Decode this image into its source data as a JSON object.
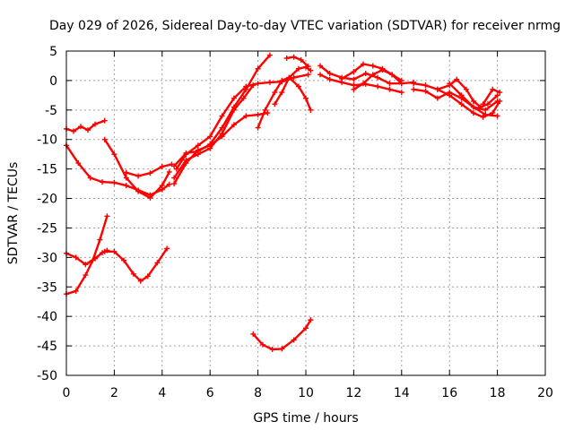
{
  "chart_data": {
    "type": "scatter",
    "title": "Day 029 of 2026, Sidereal Day-to-day VTEC variation (SDTVAR) for receiver nrmg",
    "xlabel": "GPS time / hours",
    "ylabel": "SDTVAR / TECUs",
    "xlim": [
      0,
      20
    ],
    "ylim": [
      -50,
      5
    ],
    "xticks": [
      0,
      2,
      4,
      6,
      8,
      10,
      12,
      14,
      16,
      18,
      20
    ],
    "yticks": [
      -50,
      -45,
      -40,
      -35,
      -30,
      -25,
      -20,
      -15,
      -10,
      -5,
      0,
      5
    ],
    "grid": true,
    "legend": "none",
    "color": "#ff0000",
    "series": [
      {
        "x": [
          0.0,
          0.3,
          0.6,
          0.9,
          1.2,
          1.6
        ],
        "y": [
          -8.2,
          -8.6,
          -7.8,
          -8.4,
          -7.4,
          -6.8
        ]
      },
      {
        "x": [
          0.0,
          0.5,
          1.0,
          1.5,
          2.0,
          2.5,
          3.0,
          3.5,
          4.0,
          4.3
        ],
        "y": [
          -11.0,
          -14.0,
          -16.5,
          -17.2,
          -17.3,
          -17.8,
          -18.6,
          -19.4,
          -18.5,
          -17.6
        ]
      },
      {
        "x": [
          0.0,
          0.4,
          0.8,
          1.2,
          1.5,
          1.7
        ],
        "y": [
          -29.3,
          -30.0,
          -31.2,
          -30.2,
          -29.2,
          -28.8
        ]
      },
      {
        "x": [
          0.0,
          0.4,
          0.8,
          1.1,
          1.4,
          1.7
        ],
        "y": [
          -36.2,
          -35.7,
          -33.0,
          -30.5,
          -27.0,
          -23.0
        ]
      },
      {
        "x": [
          1.6,
          2.0,
          2.5,
          3.0,
          3.5,
          4.0,
          4.3
        ],
        "y": [
          -10.0,
          -12.5,
          -16.5,
          -18.8,
          -19.9,
          -17.8,
          -15.5
        ]
      },
      {
        "x": [
          1.6,
          2.0,
          2.4,
          2.8,
          3.1,
          3.4,
          3.8,
          4.2
        ],
        "y": [
          -29.0,
          -29.0,
          -30.5,
          -32.8,
          -34.0,
          -33.2,
          -30.9,
          -28.5
        ]
      },
      {
        "x": [
          2.5,
          3.0,
          3.5,
          4.0,
          4.4
        ],
        "y": [
          -15.6,
          -16.2,
          -15.7,
          -14.6,
          -14.2
        ]
      },
      {
        "x": [
          4.5,
          5.0,
          5.5,
          6.0,
          6.5,
          7.0,
          7.4,
          7.8
        ],
        "y": [
          -16.5,
          -13.5,
          -12.5,
          -11.5,
          -9.0,
          -5.0,
          -3.0,
          -0.8
        ]
      },
      {
        "x": [
          4.5,
          5.0,
          5.5,
          6.0,
          6.5,
          7.0,
          7.5,
          8.0,
          8.5
        ],
        "y": [
          -14.5,
          -12.3,
          -12.0,
          -10.8,
          -8.0,
          -4.5,
          -1.5,
          2.0,
          4.3
        ]
      },
      {
        "x": [
          4.5,
          5.0,
          5.5,
          6.0,
          6.5,
          7.0,
          7.5,
          8.0,
          8.4
        ],
        "y": [
          -17.5,
          -14.0,
          -11.8,
          -11.0,
          -9.5,
          -7.5,
          -6.0,
          -5.8,
          -5.5
        ]
      },
      {
        "x": [
          4.6,
          5.0,
          5.5,
          6.0,
          6.5,
          7.0,
          7.5,
          8.0,
          8.5,
          9.0,
          9.5,
          10.1
        ],
        "y": [
          -15.0,
          -12.5,
          -11.0,
          -9.5,
          -6.0,
          -3.0,
          -1.0,
          -0.5,
          -0.3,
          -0.2,
          0.5,
          1.0
        ]
      },
      {
        "x": [
          8.0,
          8.3,
          8.7,
          9.0,
          9.3,
          9.7,
          10.0,
          10.2
        ],
        "y": [
          -8.0,
          -5.0,
          -2.0,
          0.0,
          0.5,
          -1.0,
          -3.0,
          -5.0
        ]
      },
      {
        "x": [
          8.7,
          9.0,
          9.3,
          9.7,
          10.0,
          10.2
        ],
        "y": [
          -4.0,
          -2.0,
          0.5,
          2.0,
          2.3,
          1.7
        ]
      },
      {
        "x": [
          9.2,
          9.5,
          9.8,
          10.1
        ],
        "y": [
          3.8,
          4.0,
          3.5,
          2.4
        ]
      },
      {
        "x": [
          7.8,
          8.2,
          8.6,
          9.0,
          9.5,
          10.0,
          10.2
        ],
        "y": [
          -43.0,
          -44.8,
          -45.6,
          -45.5,
          -44.0,
          -42.0,
          -40.6
        ]
      },
      {
        "x": [
          10.6,
          11.0,
          11.5,
          12.0,
          12.5,
          13.0,
          13.5,
          14.0,
          14.5
        ],
        "y": [
          2.5,
          1.2,
          0.5,
          0.2,
          1.2,
          0.5,
          -0.5,
          -0.5,
          -0.3
        ]
      },
      {
        "x": [
          10.6,
          11.0,
          11.5,
          12.0,
          12.5,
          13.0,
          13.5,
          14.0
        ],
        "y": [
          1.0,
          0.2,
          -0.3,
          -0.8,
          -0.6,
          -1.0,
          -1.5,
          -2.0
        ]
      },
      {
        "x": [
          11.5,
          12.0,
          12.4,
          12.8,
          13.2,
          13.6,
          14.0
        ],
        "y": [
          0.3,
          1.5,
          2.8,
          2.5,
          2.0,
          1.0,
          0.0
        ]
      },
      {
        "x": [
          12.0,
          12.4,
          12.8,
          13.2,
          13.6,
          14.0
        ],
        "y": [
          -1.5,
          -0.5,
          1.0,
          1.8,
          1.0,
          -0.5
        ]
      },
      {
        "x": [
          14.5,
          15.0,
          15.5,
          16.0,
          16.3,
          16.7,
          17.0,
          17.3,
          17.6,
          18.0
        ],
        "y": [
          -0.5,
          -0.8,
          -1.5,
          -0.8,
          0.2,
          -1.5,
          -3.5,
          -4.5,
          -4.0,
          -2.5
        ]
      },
      {
        "x": [
          14.5,
          15.0,
          15.5,
          16.0,
          16.5,
          17.0,
          17.5,
          18.0
        ],
        "y": [
          -1.5,
          -1.8,
          -3.0,
          -2.0,
          -3.0,
          -4.5,
          -5.0,
          -3.5
        ]
      },
      {
        "x": [
          15.5,
          16.0,
          16.5,
          17.0,
          17.4,
          17.8,
          18.1
        ],
        "y": [
          -1.5,
          -2.5,
          -4.0,
          -5.5,
          -6.2,
          -5.5,
          -3.5
        ]
      },
      {
        "x": [
          16.0,
          16.5,
          17.0,
          17.5,
          18.0
        ],
        "y": [
          -0.5,
          -2.5,
          -4.5,
          -5.8,
          -6.0
        ]
      },
      {
        "x": [
          17.4,
          17.8,
          18.1
        ],
        "y": [
          -4.0,
          -1.5,
          -2.0
        ]
      }
    ]
  }
}
